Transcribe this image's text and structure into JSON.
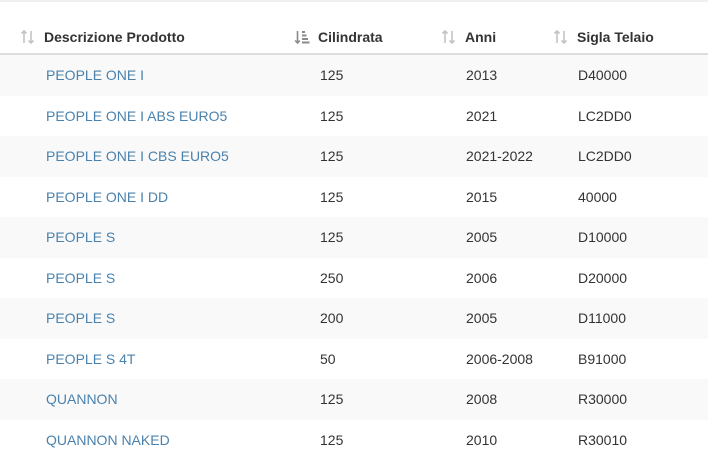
{
  "table": {
    "headers": {
      "description": "Descrizione Prodotto",
      "displacement": "Cilindrata",
      "years": "Anni",
      "frame_code": "Sigla Telaio"
    },
    "sort": {
      "active_column": "displacement",
      "icons": {
        "description": "sort-both-icon",
        "displacement": "sort-ascending-icon",
        "years": "sort-both-icon",
        "frame_code": "sort-both-icon"
      }
    },
    "rows": [
      {
        "description": "PEOPLE ONE I",
        "displacement": "125",
        "years": "2013",
        "frame_code": "D40000"
      },
      {
        "description": "PEOPLE ONE I ABS EURO5",
        "displacement": "125",
        "years": "2021",
        "frame_code": "LC2DD0"
      },
      {
        "description": "PEOPLE ONE I CBS EURO5",
        "displacement": "125",
        "years": "2021-2022",
        "frame_code": "LC2DD0"
      },
      {
        "description": "PEOPLE ONE I DD",
        "displacement": "125",
        "years": "2015",
        "frame_code": "40000"
      },
      {
        "description": "PEOPLE S",
        "displacement": "125",
        "years": "2005",
        "frame_code": "D10000"
      },
      {
        "description": "PEOPLE S",
        "displacement": "250",
        "years": "2006",
        "frame_code": "D20000"
      },
      {
        "description": "PEOPLE S",
        "displacement": "200",
        "years": "2005",
        "frame_code": "D11000"
      },
      {
        "description": "PEOPLE S 4T",
        "displacement": "50",
        "years": "2006-2008",
        "frame_code": "B91000"
      },
      {
        "description": "QUANNON",
        "displacement": "125",
        "years": "2008",
        "frame_code": "R30000"
      },
      {
        "description": "QUANNON NAKED",
        "displacement": "125",
        "years": "2010",
        "frame_code": "R30010"
      }
    ]
  },
  "colors": {
    "link": "#4a82ad",
    "text": "#333333",
    "stripe": "#f9f9f9",
    "icon": "#b5b5b5",
    "header_border": "#dddddd"
  }
}
